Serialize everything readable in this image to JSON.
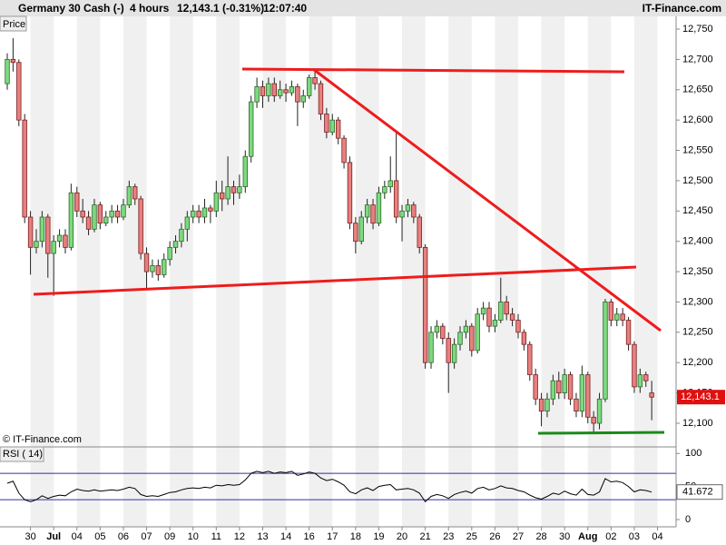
{
  "header": {
    "title": "Germany 30 Cash (-)",
    "interval": "4 hours",
    "price": "12,143.1 (-0.31%)",
    "time": "12:07:40",
    "brand": "IT-Finance.com"
  },
  "chart_data": [
    {
      "type": "candlestick",
      "label": "Price",
      "watermark": "© IT-Finance.com",
      "up_color": "#7fd97f",
      "down_color": "#e88080",
      "xlim": [
        -1.25,
        115.2
      ],
      "ylim": [
        12061,
        12771
      ],
      "yticks": [
        {
          "value": 12100,
          "label": "12,100"
        },
        {
          "value": 12150,
          "label": "12,150"
        },
        {
          "value": 12200,
          "label": "12,200"
        },
        {
          "value": 12250,
          "label": "12,250"
        },
        {
          "value": 12300,
          "label": "12,300"
        },
        {
          "value": 12350,
          "label": "12,350"
        },
        {
          "value": 12400,
          "label": "12,400"
        },
        {
          "value": 12450,
          "label": "12,450"
        },
        {
          "value": 12500,
          "label": "12,500"
        },
        {
          "value": 12550,
          "label": "12,550"
        },
        {
          "value": 12600,
          "label": "12,600"
        },
        {
          "value": 12650,
          "label": "12,650"
        },
        {
          "value": 12700,
          "label": "12,700"
        },
        {
          "value": 12750,
          "label": "12,750"
        }
      ],
      "last_value": {
        "value": 12143.1,
        "label": "12,143.1"
      },
      "ohlc": [
        [
          12660,
          12710,
          12650,
          12700
        ],
        [
          12700,
          12735,
          12680,
          12695
        ],
        [
          12695,
          12700,
          12590,
          12600
        ],
        [
          12600,
          12610,
          12430,
          12440
        ],
        [
          12440,
          12450,
          12345,
          12390
        ],
        [
          12390,
          12420,
          12380,
          12400
        ],
        [
          12400,
          12450,
          12390,
          12440
        ],
        [
          12440,
          12445,
          12340,
          12380
        ],
        [
          12380,
          12410,
          12310,
          12400
        ],
        [
          12400,
          12420,
          12390,
          12410
        ],
        [
          12410,
          12420,
          12380,
          12390
        ],
        [
          12390,
          12495,
          12385,
          12480
        ],
        [
          12480,
          12490,
          12440,
          12450
        ],
        [
          12450,
          12470,
          12430,
          12440
        ],
        [
          12440,
          12450,
          12410,
          12420
        ],
        [
          12420,
          12470,
          12415,
          12460
        ],
        [
          12460,
          12465,
          12420,
          12430
        ],
        [
          12430,
          12450,
          12425,
          12440
        ],
        [
          12440,
          12460,
          12430,
          12450
        ],
        [
          12450,
          12460,
          12430,
          12440
        ],
        [
          12440,
          12470,
          12435,
          12460
        ],
        [
          12460,
          12500,
          12455,
          12490
        ],
        [
          12490,
          12495,
          12460,
          12470
        ],
        [
          12470,
          12475,
          12370,
          12380
        ],
        [
          12380,
          12390,
          12320,
          12350
        ],
        [
          12350,
          12370,
          12340,
          12360
        ],
        [
          12360,
          12370,
          12335,
          12345
        ],
        [
          12345,
          12380,
          12340,
          12370
        ],
        [
          12370,
          12400,
          12360,
          12390
        ],
        [
          12390,
          12410,
          12380,
          12400
        ],
        [
          12400,
          12430,
          12390,
          12420
        ],
        [
          12420,
          12450,
          12400,
          12440
        ],
        [
          12440,
          12460,
          12430,
          12450
        ],
        [
          12450,
          12460,
          12430,
          12440
        ],
        [
          12440,
          12470,
          12430,
          12455
        ],
        [
          12455,
          12460,
          12430,
          12450
        ],
        [
          12450,
          12500,
          12440,
          12480
        ],
        [
          12480,
          12500,
          12450,
          12470
        ],
        [
          12470,
          12540,
          12460,
          12490
        ],
        [
          12490,
          12500,
          12460,
          12480
        ],
        [
          12480,
          12510,
          12470,
          12490
        ],
        [
          12490,
          12550,
          12480,
          12540
        ],
        [
          12540,
          12640,
          12530,
          12630
        ],
        [
          12630,
          12670,
          12620,
          12655
        ],
        [
          12655,
          12665,
          12620,
          12640
        ],
        [
          12640,
          12670,
          12630,
          12660
        ],
        [
          12660,
          12670,
          12630,
          12640
        ],
        [
          12640,
          12665,
          12635,
          12650
        ],
        [
          12650,
          12660,
          12630,
          12645
        ],
        [
          12645,
          12665,
          12640,
          12655
        ],
        [
          12655,
          12660,
          12590,
          12630
        ],
        [
          12630,
          12650,
          12620,
          12640
        ],
        [
          12640,
          12675,
          12635,
          12670
        ],
        [
          12670,
          12680,
          12650,
          12660
        ],
        [
          12660,
          12665,
          12600,
          12610
        ],
        [
          12610,
          12620,
          12570,
          12580
        ],
        [
          12580,
          12610,
          12575,
          12600
        ],
        [
          12600,
          12605,
          12560,
          12570
        ],
        [
          12570,
          12575,
          12520,
          12530
        ],
        [
          12530,
          12540,
          12420,
          12430
        ],
        [
          12430,
          12440,
          12380,
          12400
        ],
        [
          12400,
          12450,
          12395,
          12440
        ],
        [
          12440,
          12470,
          12430,
          12460
        ],
        [
          12460,
          12470,
          12420,
          12430
        ],
        [
          12430,
          12490,
          12425,
          12480
        ],
        [
          12480,
          12500,
          12470,
          12490
        ],
        [
          12490,
          12540,
          12480,
          12500
        ],
        [
          12500,
          12580,
          12430,
          12440
        ],
        [
          12440,
          12460,
          12400,
          12450
        ],
        [
          12450,
          12470,
          12440,
          12460
        ],
        [
          12460,
          12465,
          12430,
          12440
        ],
        [
          12440,
          12445,
          12380,
          12390
        ],
        [
          12390,
          12395,
          12190,
          12200
        ],
        [
          12200,
          12260,
          12190,
          12250
        ],
        [
          12250,
          12270,
          12240,
          12260
        ],
        [
          12260,
          12265,
          12230,
          12240
        ],
        [
          12240,
          12250,
          12150,
          12200
        ],
        [
          12200,
          12240,
          12190,
          12230
        ],
        [
          12230,
          12260,
          12220,
          12250
        ],
        [
          12250,
          12270,
          12240,
          12260
        ],
        [
          12260,
          12265,
          12210,
          12220
        ],
        [
          12220,
          12290,
          12215,
          12280
        ],
        [
          12280,
          12300,
          12270,
          12290
        ],
        [
          12290,
          12300,
          12250,
          12260
        ],
        [
          12260,
          12280,
          12250,
          12270
        ],
        [
          12270,
          12340,
          12265,
          12300
        ],
        [
          12300,
          12310,
          12270,
          12280
        ],
        [
          12280,
          12290,
          12260,
          12270
        ],
        [
          12270,
          12280,
          12240,
          12250
        ],
        [
          12250,
          12255,
          12220,
          12230
        ],
        [
          12230,
          12235,
          12170,
          12180
        ],
        [
          12180,
          12190,
          12130,
          12140
        ],
        [
          12140,
          12150,
          12095,
          12120
        ],
        [
          12120,
          12150,
          12110,
          12140
        ],
        [
          12140,
          12180,
          12130,
          12170
        ],
        [
          12170,
          12185,
          12140,
          12150
        ],
        [
          12150,
          12190,
          12140,
          12180
        ],
        [
          12180,
          12185,
          12130,
          12140
        ],
        [
          12140,
          12150,
          12110,
          12120
        ],
        [
          12120,
          12195,
          12110,
          12180
        ],
        [
          12180,
          12185,
          12100,
          12110
        ],
        [
          12110,
          12120,
          12085,
          12100
        ],
        [
          12100,
          12150,
          12090,
          12140
        ],
        [
          12140,
          12305,
          12135,
          12300
        ],
        [
          12300,
          12305,
          12260,
          12270
        ],
        [
          12270,
          12290,
          12260,
          12280
        ],
        [
          12280,
          12290,
          12260,
          12270
        ],
        [
          12270,
          12275,
          12220,
          12230
        ],
        [
          12230,
          12235,
          12150,
          12160
        ],
        [
          12160,
          12190,
          12150,
          12180
        ],
        [
          12180,
          12185,
          12160,
          12170
        ],
        [
          12150,
          12170,
          12105,
          12143.1
        ]
      ]
    },
    {
      "type": "line",
      "label": "RSI ( 14)",
      "color": "#000000",
      "level_color": "#3030a0",
      "xlim": [
        -1.25,
        115.2
      ],
      "ylim": [
        -11,
        110
      ],
      "yticks": [
        0,
        50,
        100
      ],
      "levels": [
        30,
        70
      ],
      "last_value": 41.672,
      "xticks": [
        {
          "value": 4,
          "label": "30"
        },
        {
          "value": 8,
          "label": "Jul"
        },
        {
          "value": 12,
          "label": "04"
        },
        {
          "value": 16,
          "label": "05"
        },
        {
          "value": 20,
          "label": "06"
        },
        {
          "value": 24,
          "label": "07"
        },
        {
          "value": 28,
          "label": "09"
        },
        {
          "value": 32,
          "label": "10"
        },
        {
          "value": 36,
          "label": "11"
        },
        {
          "value": 40,
          "label": "12"
        },
        {
          "value": 44,
          "label": "13"
        },
        {
          "value": 48,
          "label": "14"
        },
        {
          "value": 52,
          "label": "16"
        },
        {
          "value": 56,
          "label": "17"
        },
        {
          "value": 60,
          "label": "18"
        },
        {
          "value": 64,
          "label": "19"
        },
        {
          "value": 68,
          "label": "20"
        },
        {
          "value": 72,
          "label": "21"
        },
        {
          "value": 76,
          "label": "23"
        },
        {
          "value": 80,
          "label": "25"
        },
        {
          "value": 84,
          "label": "26"
        },
        {
          "value": 88,
          "label": "27"
        },
        {
          "value": 92,
          "label": "28"
        },
        {
          "value": 96,
          "label": "30"
        },
        {
          "value": 100,
          "label": "Aug"
        },
        {
          "value": 104,
          "label": "02"
        },
        {
          "value": 108,
          "label": "03"
        },
        {
          "value": 112,
          "label": "04"
        }
      ],
      "values": [
        55,
        58,
        40,
        30,
        27,
        30,
        36,
        32,
        35,
        37,
        36,
        42,
        46,
        44,
        43,
        45,
        43,
        44,
        45,
        44,
        46,
        49,
        47,
        38,
        35,
        36,
        35,
        38,
        41,
        42,
        45,
        47,
        48,
        47,
        49,
        48,
        52,
        51,
        53,
        52,
        53,
        60,
        70,
        73,
        71,
        73,
        70,
        72,
        71,
        73,
        67,
        69,
        72,
        70,
        63,
        59,
        61,
        57,
        52,
        42,
        39,
        45,
        48,
        44,
        50,
        52,
        53,
        45,
        46,
        47,
        45,
        40,
        27,
        35,
        38,
        36,
        32,
        38,
        41,
        43,
        40,
        47,
        49,
        45,
        47,
        51,
        48,
        47,
        44,
        42,
        37,
        33,
        31,
        35,
        40,
        38,
        43,
        39,
        37,
        46,
        38,
        37,
        42,
        62,
        57,
        58,
        56,
        50,
        42,
        45,
        44,
        41.672
      ]
    }
  ]
}
